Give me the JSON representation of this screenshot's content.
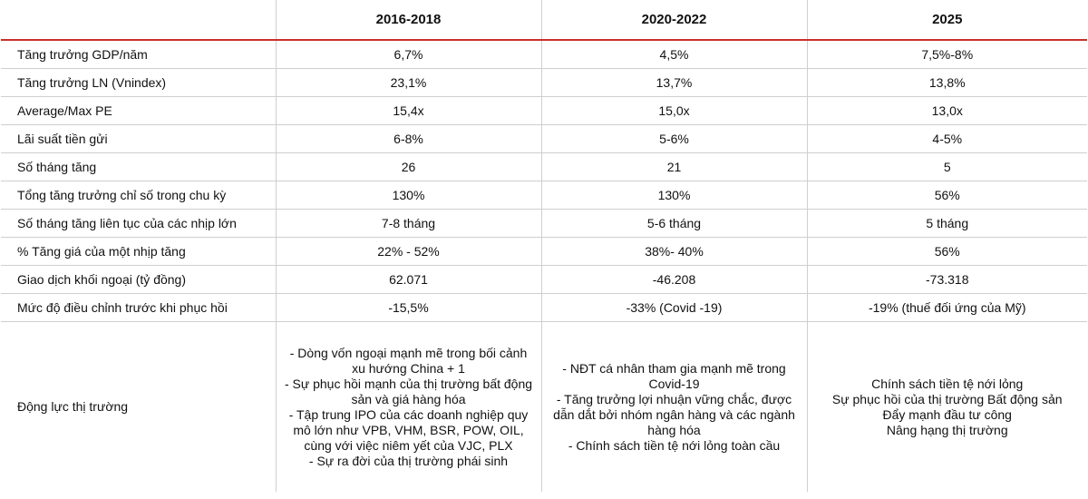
{
  "headers": [
    "",
    "2016-2018",
    "2020-2022",
    "2025"
  ],
  "rows": [
    {
      "label": "Tăng trưởng GDP/năm",
      "values": [
        "6,7%",
        "4,5%",
        "7,5%-8%"
      ]
    },
    {
      "label": "Tăng trưởng LN (Vnindex)",
      "values": [
        "23,1%",
        "13,7%",
        "13,8%"
      ]
    },
    {
      "label": "Average/Max PE",
      "values": [
        "15,4x",
        "15,0x",
        "13,0x"
      ]
    },
    {
      "label": "Lãi suất tiền gửi",
      "values": [
        "6-8%",
        "5-6%",
        "4-5%"
      ]
    },
    {
      "label": "Số tháng tăng",
      "values": [
        "26",
        "21",
        "5"
      ]
    },
    {
      "label": "Tổng tăng trưởng chỉ số trong chu kỳ",
      "values": [
        "130%",
        "130%",
        "56%"
      ]
    },
    {
      "label": "Số tháng tăng liên tục của các nhịp lớn",
      "values": [
        "7-8 tháng",
        "5-6 tháng",
        "5 tháng"
      ]
    },
    {
      "label": "% Tăng giá của một nhịp tăng",
      "values": [
        "22% - 52%",
        "38%- 40%",
        "56%"
      ]
    },
    {
      "label": "Giao dịch khối ngoại (tỷ đồng)",
      "values": [
        "62.071",
        "-46.208",
        "-73.318"
      ]
    },
    {
      "label": "Mức độ điều chỉnh trước khi phục hồi",
      "values": [
        "-15,5%",
        "-33% (Covid -19)",
        "-19% (thuế đối ứng của Mỹ)"
      ]
    }
  ],
  "drivers": {
    "label": "Động lực thị trường",
    "col1": [
      "- Dòng vốn ngoại mạnh mẽ trong bối cảnh xu hướng China + 1",
      "- Sự phục hồi mạnh của thị trường bất động sản và giá hàng hóa",
      "- Tập trung IPO của các doanh nghiệp quy mô lớn như VPB, VHM, BSR, POW, OIL, cùng với việc niêm yết của VJC, PLX",
      "- Sự ra đời của thị trường phái sinh"
    ],
    "col2": [
      "- NĐT cá nhân tham gia mạnh mẽ trong Covid-19",
      "- Tăng trưởng lợi nhuận vững chắc, được dẫn dắt bởi nhóm ngân hàng và các ngành hàng hóa",
      "- Chính sách tiền tệ nới lỏng toàn cầu"
    ],
    "col3": [
      "Chính sách tiền tệ nới lỏng",
      "Sự phục hồi của thị trường Bất động sản",
      "Đẩy mạnh đầu tư công",
      "Nâng hạng thị trường"
    ]
  }
}
